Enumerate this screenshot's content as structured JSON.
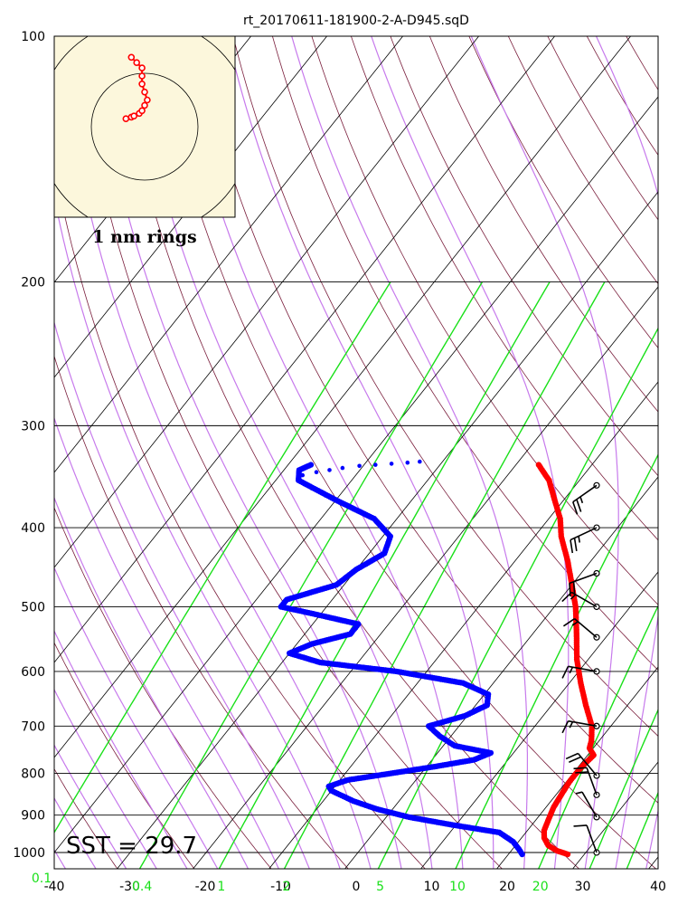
{
  "title": "rt_20170611-181900-2-A-D945.sqD",
  "sst_label": "SST = 29.7",
  "hodograph_label": "1 nm rings",
  "chart_data": {
    "type": "skew-t",
    "title": "rt_20170611-181900-2-A-D945.sqD",
    "y_scale": "log",
    "ylim": [
      1000,
      100
    ],
    "xlim": [
      -40,
      40
    ],
    "pressure_ticks": [
      100,
      200,
      300,
      400,
      500,
      600,
      700,
      800,
      900,
      1000
    ],
    "temperature_ticks": [
      -40,
      -30,
      -20,
      -10,
      0,
      10,
      20,
      30,
      40
    ],
    "mixing_ratio_ticks": [
      "0.1",
      "0.4",
      "1",
      "2",
      "5",
      "10",
      "20"
    ],
    "series": [
      {
        "name": "Temperature",
        "color": "#ff0000",
        "p": [
          1005,
          995,
          980,
          960,
          940,
          920,
          900,
          880,
          860,
          840,
          820,
          800,
          780,
          760,
          745,
          730,
          700,
          660,
          620,
          580,
          540,
          500,
          470,
          440,
          410,
          390,
          370,
          350,
          340,
          335
        ],
        "temp": [
          27.8,
          26.0,
          24.3,
          23.0,
          22.2,
          21.8,
          21.4,
          21.0,
          20.8,
          20.6,
          20.4,
          20.4,
          20.5,
          20.8,
          19.5,
          19.0,
          17.5,
          14.5,
          11.5,
          8.5,
          5.8,
          2.8,
          0.0,
          -3.0,
          -6.5,
          -8.5,
          -11.2,
          -14.0,
          -16.0,
          -17.0
        ]
      },
      {
        "name": "Dew point",
        "color": "#0000ff",
        "p": [
          1005,
          990,
          970,
          945,
          925,
          905,
          885,
          865,
          840,
          830,
          815,
          800,
          785,
          770,
          755,
          740,
          720,
          700,
          680,
          660,
          640,
          620,
          600,
          585,
          570,
          555,
          540,
          525,
          510,
          500,
          490,
          470,
          450,
          430,
          410,
          390,
          370,
          350,
          340,
          335
        ],
        "temp": [
          21.8,
          20.8,
          19.3,
          16.5,
          9.5,
          3.0,
          -2.0,
          -6.0,
          -10.0,
          -10.8,
          -9.0,
          -4.0,
          1.0,
          5.5,
          7.0,
          1.5,
          -1.5,
          -4.0,
          -0.3,
          1.5,
          0.5,
          -4.0,
          -14.0,
          -25.0,
          -30.0,
          -28.0,
          -24.0,
          -24.0,
          -31.0,
          -36.0,
          -36.0,
          -31.0,
          -30.0,
          -28.0,
          -29.0,
          -33.0,
          -40.0,
          -47.0,
          -48.0,
          -47.0
        ]
      },
      {
        "name": "Dew point (upper, dotted)",
        "color": "#0000ff",
        "p": [
          345,
          342,
          340,
          338,
          336,
          335,
          334,
          333,
          332
        ],
        "temp": [
          -47.0,
          -45.5,
          -44.0,
          -42.5,
          -40.5,
          -38.5,
          -36.5,
          -34.5,
          -33.0
        ]
      }
    ],
    "wind_barbs": [
      {
        "p": 1000,
        "dir": 340,
        "kt": 10
      },
      {
        "p": 905,
        "dir": 330,
        "kt": 5
      },
      {
        "p": 850,
        "dir": 340,
        "kt": 20
      },
      {
        "p": 805,
        "dir": 320,
        "kt": 20
      },
      {
        "p": 700,
        "dir": 280,
        "kt": 15
      },
      {
        "p": 600,
        "dir": 280,
        "kt": 15
      },
      {
        "p": 545,
        "dir": 310,
        "kt": 15
      },
      {
        "p": 500,
        "dir": 300,
        "kt": 15
      },
      {
        "p": 455,
        "dir": 250,
        "kt": 20
      },
      {
        "p": 400,
        "dir": 245,
        "kt": 25
      },
      {
        "p": 355,
        "dir": 235,
        "kt": 25
      }
    ],
    "hodograph_track": [
      [
        -0.35,
        0.15
      ],
      [
        -0.25,
        0.18
      ],
      [
        -0.2,
        0.2
      ],
      [
        -0.1,
        0.25
      ],
      [
        -0.05,
        0.3
      ],
      [
        0.0,
        0.4
      ],
      [
        0.05,
        0.5
      ],
      [
        0.0,
        0.65
      ],
      [
        -0.05,
        0.8
      ],
      [
        -0.05,
        0.95
      ],
      [
        -0.05,
        1.1
      ],
      [
        -0.15,
        1.2
      ],
      [
        -0.25,
        1.3
      ]
    ],
    "grid": true
  }
}
